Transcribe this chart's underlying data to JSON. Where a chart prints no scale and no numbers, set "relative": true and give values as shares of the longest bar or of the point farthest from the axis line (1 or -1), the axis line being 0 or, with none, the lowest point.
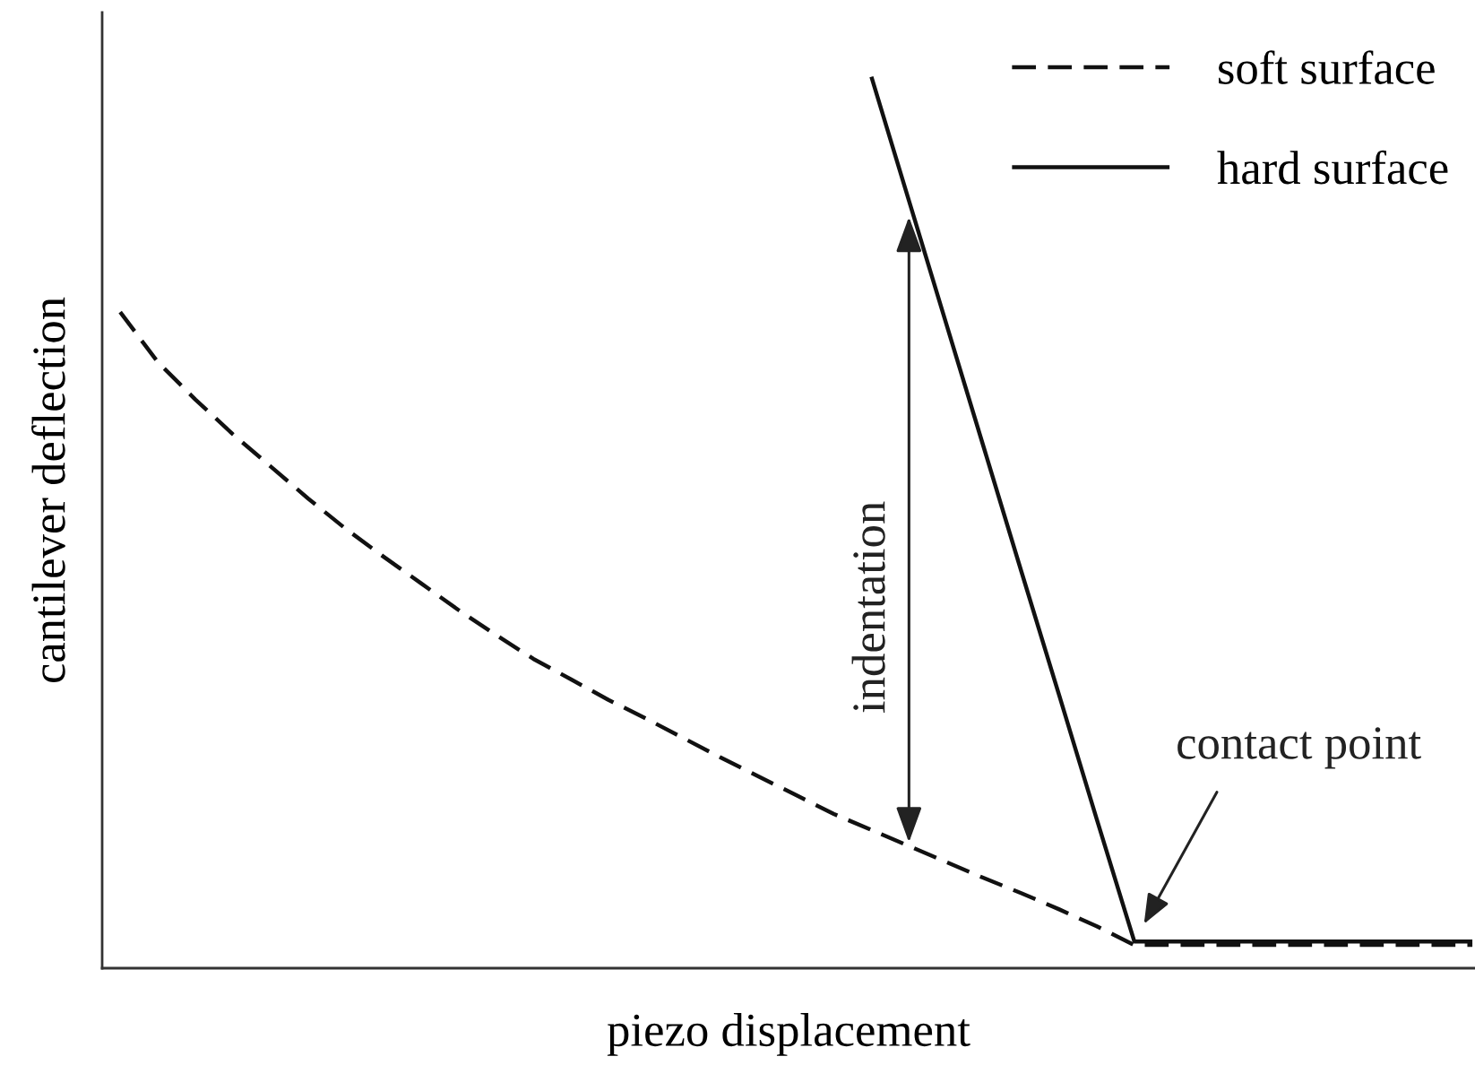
{
  "chart_data": {
    "type": "line",
    "relative": true,
    "xlabel": "piezo displacement",
    "ylabel": "cantilever deflection",
    "legend": "top right",
    "categories": [
      null,
      null,
      null,
      null,
      null,
      null,
      null,
      null,
      null,
      null,
      null,
      null,
      null,
      null,
      null,
      null,
      null,
      null,
      null,
      null,
      null,
      null,
      null,
      null,
      null,
      null,
      null,
      null,
      null,
      null,
      null,
      null,
      null,
      null,
      null,
      null,
      null
    ],
    "series": [
      {
        "name": "soft surface",
        "color": "#111111",
        "line_style": "dashed",
        "values": [
          0.736,
          0.68,
          0.638,
          0.599,
          0.563,
          0.527,
          0.493,
          0.462,
          0.432,
          0.402,
          0.374,
          0.347,
          0.324,
          0.301,
          0.28,
          0.258,
          0.236,
          0.215,
          0.194,
          0.173,
          0.155,
          0.137,
          0.119,
          0.101,
          0.084,
          0.066,
          0.047,
          0.026,
          0.026,
          0.026,
          0.026,
          0.026,
          0.026,
          0.026,
          0.026,
          0.026,
          0.026
        ]
      },
      {
        "name": "hard surface",
        "color": "#111111",
        "line_style": "solid",
        "values": [
          null,
          null,
          null,
          null,
          null,
          null,
          null,
          null,
          null,
          null,
          null,
          null,
          null,
          null,
          null,
          null,
          null,
          null,
          null,
          null,
          1.0,
          0.861,
          0.722,
          0.583,
          0.444,
          0.306,
          0.167,
          0.03,
          0.03,
          0.03,
          0.03,
          0.03,
          0.03,
          0.03,
          0.03,
          0.03,
          0.03
        ]
      }
    ],
    "annotations": [
      "indentation",
      "contact point"
    ]
  }
}
